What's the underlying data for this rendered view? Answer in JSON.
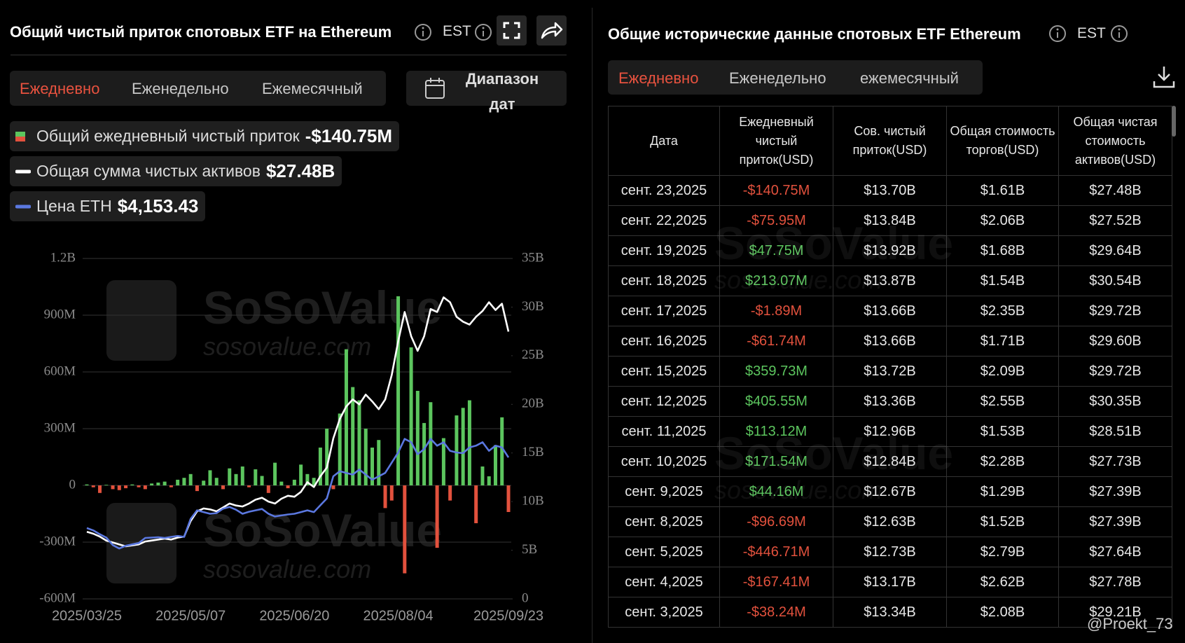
{
  "left_panel": {
    "title": "Общий чистый приток спотовых ETF на Ethereum",
    "timezone": "EST",
    "tabs": [
      "Ежедневно",
      "Еженедельно",
      "Ежемесячный"
    ],
    "date_range": "Диапазон дат"
  },
  "legend_values": [
    "-$140.75M",
    "$27.48B",
    "$4,153.43"
  ],
  "chart_data": {
    "type": "bar",
    "categories": [
      "2025/03/25",
      null,
      null,
      null,
      null,
      null,
      null,
      null,
      null,
      null,
      null,
      null,
      null,
      null,
      null,
      null,
      "2025/05/07",
      null,
      null,
      null,
      null,
      null,
      null,
      null,
      null,
      null,
      null,
      null,
      null,
      null,
      null,
      null,
      "2025/06/20",
      null,
      null,
      null,
      null,
      null,
      null,
      null,
      null,
      null,
      null,
      null,
      null,
      null,
      null,
      null,
      "2025/08/04",
      null,
      null,
      null,
      null,
      null,
      null,
      null,
      null,
      null,
      null,
      null,
      null,
      null,
      null,
      null,
      null,
      "2025/09/23"
    ],
    "series": [
      {
        "name": "Общий ежедневный чистый приток",
        "type": "bar",
        "color": "#5cc55e",
        "negative_color": "#e2513d",
        "values": [
          5,
          -10,
          -40,
          3,
          -20,
          -25,
          -15,
          5,
          -10,
          -20,
          10,
          15,
          20,
          -10,
          30,
          40,
          60,
          -30,
          25,
          80,
          40,
          -20,
          90,
          60,
          100,
          -10,
          85,
          50,
          -40,
          120,
          20,
          -15,
          30,
          110,
          60,
          40,
          200,
          300,
          -20,
          380,
          720,
          520,
          450,
          300,
          200,
          240,
          -120,
          -80,
          1000,
          -465,
          730,
          500,
          330,
          440,
          -330,
          250,
          -80,
          370,
          410,
          450,
          -200,
          100,
          48,
          213,
          360,
          -140.75
        ]
      },
      {
        "name": "Общая сумма чистых активов",
        "type": "line",
        "axis": "y2",
        "color": "#ffffff",
        "values": [
          6.9,
          6.7,
          6.4,
          6.0,
          5.8,
          5.6,
          5.4,
          5.5,
          5.6,
          5.9,
          6.0,
          6.1,
          6.2,
          6.1,
          6.3,
          6.4,
          8.0,
          9.0,
          9.3,
          9.2,
          9.0,
          9.4,
          9.8,
          9.6,
          9.5,
          9.8,
          10.2,
          10.4,
          10.0,
          9.8,
          10.3,
          10.6,
          10.5,
          11.0,
          12.0,
          11.5,
          12.6,
          13.5,
          16.5,
          18.5,
          19.8,
          20.5,
          20.0,
          21.0,
          20.3,
          19.5,
          20.5,
          23.0,
          26.5,
          29.5,
          27.0,
          25.5,
          27.0,
          29.8,
          29.5,
          31.0,
          30.5,
          29.0,
          28.5,
          28.2,
          29.0,
          29.6,
          30.5,
          29.7,
          30.35,
          27.48
        ]
      },
      {
        "name": "Цена ETH",
        "type": "line",
        "axis": "y3",
        "color": "#5b78e0",
        "values": [
          2080,
          2010,
          1900,
          1800,
          1580,
          1480,
          1560,
          1600,
          1640,
          1790,
          1800,
          1810,
          1790,
          1820,
          1850,
          1820,
          2350,
          2600,
          2550,
          2500,
          2520,
          2650,
          2700,
          2620,
          2500,
          2560,
          2600,
          2640,
          2500,
          2420,
          2450,
          2480,
          2500,
          2550,
          2600,
          2550,
          2750,
          2950,
          3600,
          3750,
          3700,
          3650,
          3800,
          3650,
          3500,
          3600,
          3700,
          4000,
          4300,
          4700,
          4600,
          4250,
          4400,
          4700,
          4500,
          4600,
          4350,
          4300,
          4280,
          4450,
          4500,
          4600,
          4350,
          4500,
          4450,
          4153.43
        ]
      }
    ],
    "ylim": [
      -600,
      1200
    ],
    "yticks": [
      {
        "value": -600,
        "label": "-600M"
      },
      {
        "value": -300,
        "label": "-300M"
      },
      0,
      {
        "value": 300,
        "label": "300M"
      },
      {
        "value": 600,
        "label": "600M"
      },
      {
        "value": 900,
        "label": "900M"
      },
      {
        "value": 1200,
        "label": "1.2B"
      }
    ],
    "y2lim": [
      0,
      35
    ],
    "y2ticks": [
      0,
      {
        "value": 5,
        "label": "5B"
      },
      {
        "value": 10,
        "label": "10B"
      },
      {
        "value": 15,
        "label": "15B"
      },
      {
        "value": 20,
        "label": "20B"
      },
      {
        "value": 25,
        "label": "25B"
      },
      {
        "value": 30,
        "label": "30B"
      },
      {
        "value": 35,
        "label": "35B"
      }
    ],
    "y3lim": [
      0,
      10000
    ],
    "grid": true
  },
  "right_panel": {
    "title": "Общие исторические данные спотовых ETF Ethereum",
    "timezone": "EST",
    "tabs": [
      "Ежедневно",
      "Еженедельно",
      "ежемесячный"
    ],
    "table": {
      "columns": [
        "Дата",
        "Ежедневный чистый приток(USD)",
        "Сов. чистый приток(USD)",
        "Общая стоимость торгов(USD)",
        "Общая чистая стоимость активов(USD)"
      ],
      "rows": [
        [
          "сент. 23,2025",
          "-$140.75M",
          "$13.70B",
          "$1.61B",
          "$27.48B"
        ],
        [
          "сент. 22,2025",
          "-$75.95M",
          "$13.84B",
          "$2.06B",
          "$27.52B"
        ],
        [
          "сент. 19,2025",
          "$47.75M",
          "$13.92B",
          "$1.68B",
          "$29.64B"
        ],
        [
          "сент. 18,2025",
          "$213.07M",
          "$13.87B",
          "$1.54B",
          "$30.54B"
        ],
        [
          "сент. 17,2025",
          "-$1.89M",
          "$13.66B",
          "$2.35B",
          "$29.72B"
        ],
        [
          "сент. 16,2025",
          "-$61.74M",
          "$13.66B",
          "$1.71B",
          "$29.60B"
        ],
        [
          "сент. 15,2025",
          "$359.73M",
          "$13.72B",
          "$2.09B",
          "$29.72B"
        ],
        [
          "сент. 12,2025",
          "$405.55M",
          "$13.36B",
          "$2.55B",
          "$30.35B"
        ],
        [
          "сент. 11,2025",
          "$113.12M",
          "$12.96B",
          "$1.53B",
          "$28.51B"
        ],
        [
          "сент. 10,2025",
          "$171.54M",
          "$12.84B",
          "$2.28B",
          "$27.73B"
        ],
        [
          "сент. 9,2025",
          "$44.16M",
          "$12.67B",
          "$1.29B",
          "$27.39B"
        ],
        [
          "сент. 8,2025",
          "-$96.69M",
          "$12.63B",
          "$1.52B",
          "$27.39B"
        ],
        [
          "сент. 5,2025",
          "-$446.71M",
          "$12.73B",
          "$2.79B",
          "$27.64B"
        ],
        [
          "сент. 4,2025",
          "-$167.41M",
          "$13.17B",
          "$2.62B",
          "$27.78B"
        ],
        [
          "сент. 3,2025",
          "-$38.24M",
          "$13.34B",
          "$2.08B",
          "$29.21B"
        ]
      ]
    }
  },
  "watermarks": {
    "brand": "SoSoValue",
    "site": "sosovalue.com",
    "credit": "@Proekt_73"
  }
}
